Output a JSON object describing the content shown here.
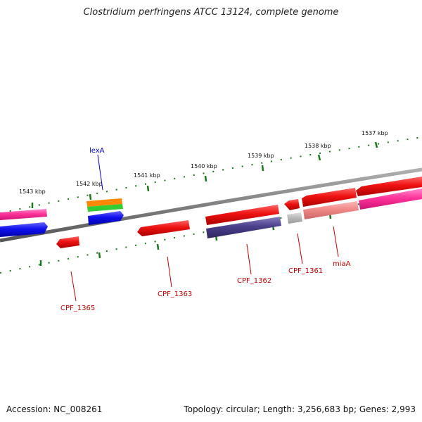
{
  "title": "Clostridium perfringens ATCC 13124, complete genome",
  "footer": {
    "accession": "Accession: NC_008261",
    "summary": "Topology: circular; Length: 3,256,683 bp; Genes: 2,993"
  },
  "kbp_labels": [
    "1537 kbp",
    "1538 kbp",
    "1539 kbp",
    "1540 kbp",
    "1541 kbp",
    "1542 kbp",
    "1543 kbp"
  ],
  "gene_labels": [
    {
      "text": "lexA",
      "color": "#0000cc"
    },
    {
      "text": "CPF_1365",
      "color": "#cc0000"
    },
    {
      "text": "CPF_1363",
      "color": "#cc0000"
    },
    {
      "text": "CPF_1362",
      "color": "#cc0000"
    },
    {
      "text": "CPF_1361",
      "color": "#cc0000"
    },
    {
      "text": "miaA",
      "color": "#cc0000"
    }
  ],
  "colors": {
    "backbone": "#808080",
    "tick": "#1a7a1a",
    "cds_red": "#ee1111",
    "cds_pink": "#ff3399",
    "cds_blue": "#1111ee",
    "cds_orange": "#ff8800",
    "cds_green": "#33cc33",
    "cds_navy": "#4a3f8a",
    "cds_salmon": "#f08888",
    "cds_grey": "#bbbbbb"
  }
}
